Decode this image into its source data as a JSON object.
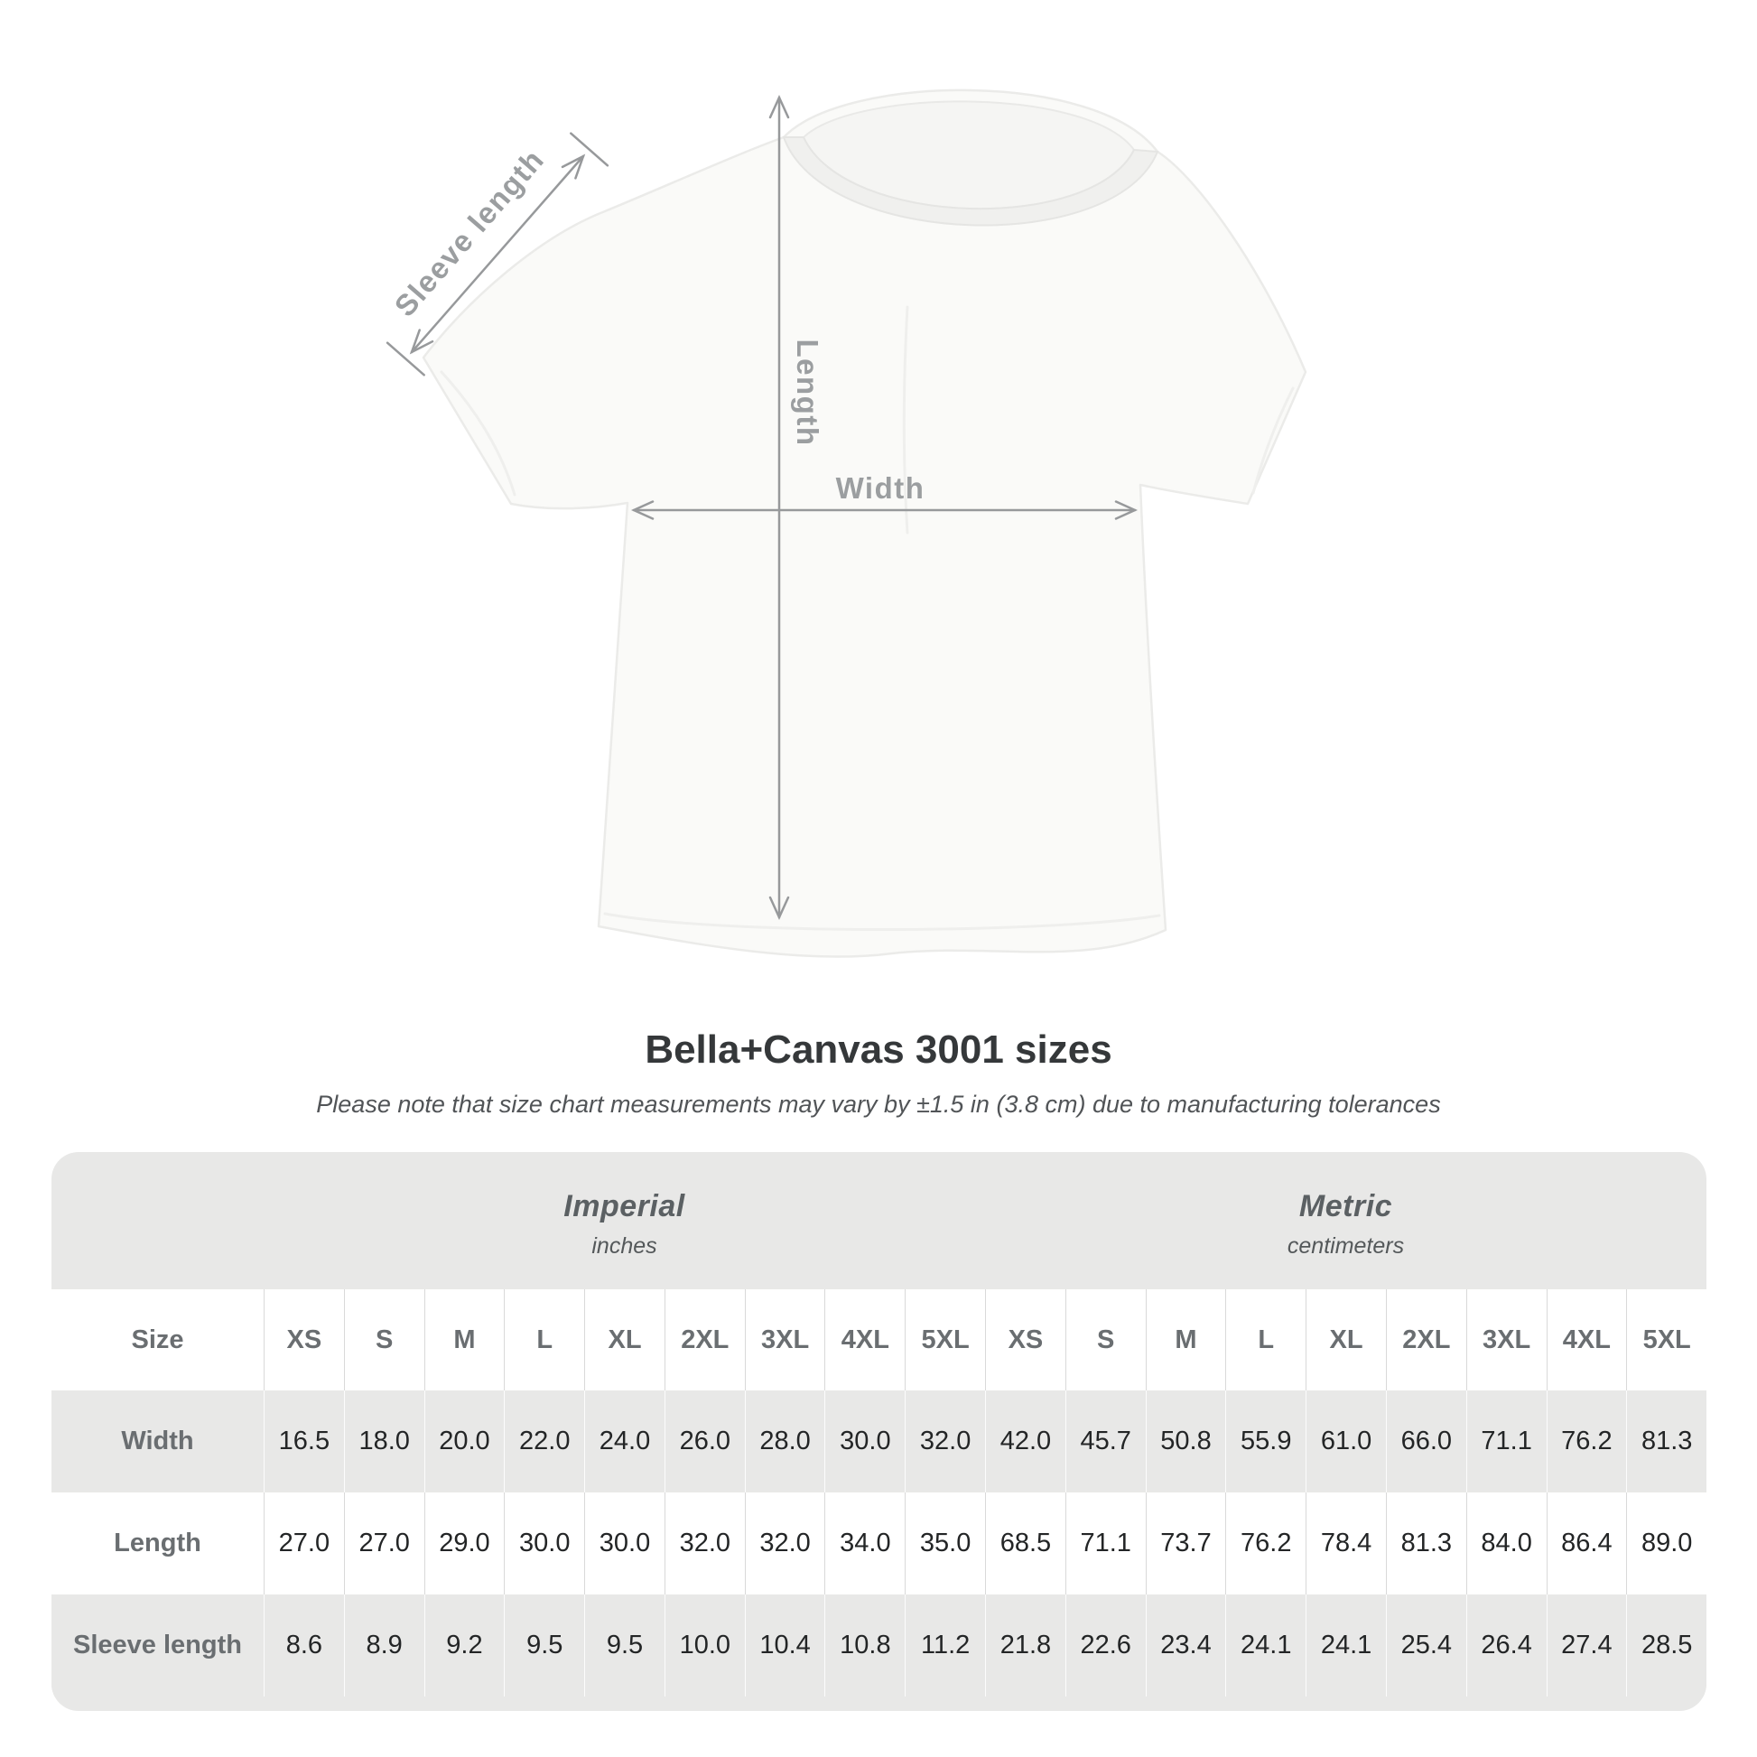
{
  "shirt_diagram": {
    "labels": {
      "sleeve_length": "Sleeve length",
      "length": "Length",
      "width": "Width"
    }
  },
  "header": {
    "title": "Bella+Canvas 3001 sizes",
    "note": "Please note that size chart measurements may vary by ±1.5 in (3.8 cm) due to manufacturing tolerances"
  },
  "table": {
    "size_col_header": "Size",
    "unit_groups": [
      {
        "name": "Imperial",
        "sub": "inches"
      },
      {
        "name": "Metric",
        "sub": "centimeters"
      }
    ],
    "size_columns": [
      "XS",
      "S",
      "M",
      "L",
      "XL",
      "2XL",
      "3XL",
      "4XL",
      "5XL",
      "XS",
      "S",
      "M",
      "L",
      "XL",
      "2XL",
      "3XL",
      "4XL",
      "5XL"
    ],
    "rows": [
      {
        "label": "Width",
        "values": [
          "16.5",
          "18.0",
          "20.0",
          "22.0",
          "24.0",
          "26.0",
          "28.0",
          "30.0",
          "32.0",
          "42.0",
          "45.7",
          "50.8",
          "55.9",
          "61.0",
          "66.0",
          "71.1",
          "76.2",
          "81.3"
        ]
      },
      {
        "label": "Length",
        "values": [
          "27.0",
          "27.0",
          "29.0",
          "30.0",
          "30.0",
          "32.0",
          "32.0",
          "34.0",
          "35.0",
          "68.5",
          "71.1",
          "73.7",
          "76.2",
          "78.4",
          "81.3",
          "84.0",
          "86.4",
          "89.0"
        ]
      },
      {
        "label": "Sleeve length",
        "values": [
          "8.6",
          "8.9",
          "9.2",
          "9.5",
          "9.5",
          "10.0",
          "10.4",
          "10.8",
          "11.2",
          "21.8",
          "22.6",
          "23.4",
          "24.1",
          "24.1",
          "25.4",
          "26.4",
          "27.4",
          "28.5"
        ]
      }
    ]
  },
  "colors": {
    "arrow_gray": "#97999b",
    "label_gray": "#9b9ea0",
    "title_color": "#35383a",
    "note_color": "#515457",
    "table_bg": "#e8e8e7",
    "head_text": "#6a6e71",
    "value_text": "#232526",
    "unit_text": "#5b6063",
    "unit_sub_text": "#54585a"
  },
  "chart_data": {
    "type": "table",
    "title": "Bella+Canvas 3001 sizes",
    "note": "Please note that size chart measurements may vary by ±1.5 in (3.8 cm) due to manufacturing tolerances",
    "unit_groups": [
      {
        "name": "Imperial",
        "unit": "inches",
        "sizes": [
          "XS",
          "S",
          "M",
          "L",
          "XL",
          "2XL",
          "3XL",
          "4XL",
          "5XL"
        ],
        "width": [
          16.5,
          18.0,
          20.0,
          22.0,
          24.0,
          26.0,
          28.0,
          30.0,
          32.0
        ],
        "length": [
          27.0,
          27.0,
          29.0,
          30.0,
          30.0,
          32.0,
          32.0,
          34.0,
          35.0
        ],
        "sleeve_length": [
          8.6,
          8.9,
          9.2,
          9.5,
          9.5,
          10.0,
          10.4,
          10.8,
          11.2
        ]
      },
      {
        "name": "Metric",
        "unit": "centimeters",
        "sizes": [
          "XS",
          "S",
          "M",
          "L",
          "XL",
          "2XL",
          "3XL",
          "4XL",
          "5XL"
        ],
        "width": [
          42.0,
          45.7,
          50.8,
          55.9,
          61.0,
          66.0,
          71.1,
          76.2,
          81.3
        ],
        "length": [
          68.5,
          71.1,
          73.7,
          76.2,
          78.4,
          81.3,
          84.0,
          86.4,
          89.0
        ],
        "sleeve_length": [
          21.8,
          22.6,
          23.4,
          24.1,
          24.1,
          25.4,
          26.4,
          27.4,
          28.5
        ]
      }
    ],
    "row_labels": [
      "Width",
      "Length",
      "Sleeve length"
    ],
    "annotated_measurements": [
      "Sleeve length",
      "Length",
      "Width"
    ]
  }
}
